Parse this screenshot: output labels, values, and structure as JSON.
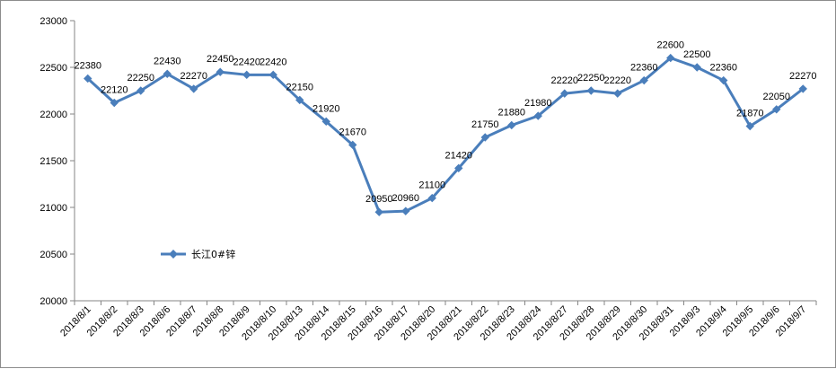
{
  "chart_data": {
    "type": "line",
    "title": "",
    "xlabel": "",
    "ylabel": "",
    "ylim": [
      20000,
      23000
    ],
    "yticks": [
      20000,
      20500,
      21000,
      21500,
      22000,
      22500,
      23000
    ],
    "grid": false,
    "legend_position": "lower-left",
    "series_color": "#4a7ebb",
    "categories": [
      "2018/8/1",
      "2018/8/2",
      "2018/8/3",
      "2018/8/6",
      "2018/8/7",
      "2018/8/8",
      "2018/8/9",
      "2018/8/10",
      "2018/8/13",
      "2018/8/14",
      "2018/8/15",
      "2018/8/16",
      "2018/8/17",
      "2018/8/20",
      "2018/8/21",
      "2018/8/22",
      "2018/8/23",
      "2018/8/24",
      "2018/8/27",
      "2018/8/28",
      "2018/8/29",
      "2018/8/30",
      "2018/8/31",
      "2018/9/3",
      "2018/9/4",
      "2018/9/5",
      "2018/9/6",
      "2018/9/7"
    ],
    "series": [
      {
        "name": "长江0#锌",
        "values": [
          22380,
          22120,
          22250,
          22430,
          22270,
          22450,
          22420,
          22420,
          22150,
          21920,
          21670,
          20950,
          20960,
          21100,
          21420,
          21750,
          21880,
          21980,
          22220,
          22250,
          22220,
          22360,
          22600,
          22500,
          22360,
          21870,
          22050,
          22270
        ]
      }
    ]
  }
}
